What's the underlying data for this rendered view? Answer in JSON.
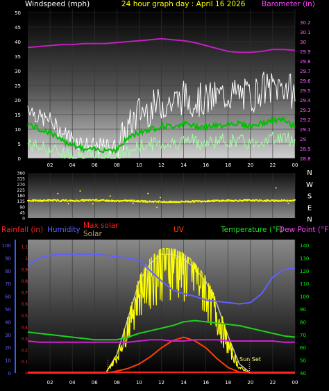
{
  "header": {
    "windspeed_label": "Windspeed (mph)",
    "graph_title": "24 hour graph day : April 16 2026",
    "barometer_label": "Barometer (in)"
  },
  "x_ticks": [
    "02",
    "04",
    "06",
    "08",
    "10",
    "12",
    "14",
    "16",
    "18",
    "20",
    "22",
    "00"
  ],
  "colors": {
    "gust": "#ffffff",
    "avg_wind": "#00c000",
    "wind_lower": "#a0ffa0",
    "barometer": "#c020c0",
    "direction": "#ffff00",
    "humidity": "#6060ff",
    "temperature": "#20d020",
    "dewpoint": "#d020d0",
    "solar": "#ffff00",
    "max_solar": "#c0c0c0",
    "uv": "#ff4000",
    "rain_axis": "#3060ff",
    "temp_axis": "#00ff00"
  },
  "chart_data": [
    {
      "type": "line",
      "name": "wind-barometer",
      "left_axis": {
        "label": "Windspeed (mph)",
        "ticks": [
          "0",
          "5",
          "10",
          "15",
          "20",
          "25",
          "30",
          "35",
          "40",
          "45",
          "50"
        ],
        "ylim": [
          0,
          50
        ]
      },
      "right_axis": {
        "label": "Barometer (in)",
        "ticks": [
          "28.8",
          "28.9",
          "29",
          "29.1",
          "29.2",
          "29.3",
          "29.4",
          "29.5",
          "29.6",
          "29.7",
          "29.8",
          "29.9",
          "30",
          "30.1",
          "30.2"
        ],
        "ylim": [
          28.8,
          30.3
        ]
      },
      "x": [
        0,
        1,
        2,
        3,
        4,
        5,
        6,
        7,
        8,
        9,
        10,
        11,
        12,
        13,
        14,
        15,
        16,
        17,
        18,
        19,
        20,
        21,
        22,
        23,
        24
      ],
      "series": [
        {
          "key": "gust",
          "values": [
            18,
            14,
            13,
            9,
            7,
            5,
            4,
            4,
            4,
            10,
            16,
            17,
            19,
            19,
            21,
            20,
            20,
            21,
            22,
            22,
            21,
            24,
            24,
            25,
            22
          ]
        },
        {
          "key": "average",
          "values": [
            12,
            10,
            9,
            6,
            5,
            3,
            3,
            3,
            3,
            7,
            9,
            10,
            11,
            11,
            12,
            11,
            11,
            11,
            12,
            12,
            11,
            12,
            13,
            13,
            11
          ]
        },
        {
          "key": "lower",
          "values": [
            5,
            4,
            3,
            2,
            1,
            1,
            0,
            0,
            0,
            2,
            4,
            5,
            5,
            5,
            6,
            6,
            5,
            6,
            6,
            6,
            5,
            6,
            7,
            7,
            6
          ]
        },
        {
          "key": "barometer",
          "values": [
            29.94,
            29.95,
            29.96,
            29.97,
            29.97,
            29.98,
            29.98,
            29.98,
            29.99,
            30.0,
            30.01,
            30.02,
            30.03,
            30.02,
            30.01,
            29.99,
            29.96,
            29.93,
            29.9,
            29.89,
            29.89,
            29.9,
            29.92,
            29.92,
            29.91
          ]
        }
      ]
    },
    {
      "type": "scatter",
      "name": "wind-direction",
      "left_ticks": [
        "0",
        "45",
        "90",
        "135",
        "180",
        "225",
        "270",
        "315",
        "360"
      ],
      "right_labels": [
        "N",
        "W",
        "S",
        "E",
        "N"
      ],
      "ylim": [
        0,
        360
      ],
      "x": [
        0,
        1,
        2,
        3,
        4,
        5,
        6,
        7,
        8,
        9,
        10,
        11,
        12,
        13,
        14,
        15,
        16,
        17,
        18,
        19,
        20,
        21,
        22,
        23,
        24
      ],
      "values": [
        140,
        138,
        141,
        139,
        137,
        140,
        142,
        139,
        136,
        138,
        135,
        132,
        130,
        128,
        131,
        134,
        136,
        138,
        139,
        140,
        141,
        139,
        138,
        140,
        141
      ]
    },
    {
      "type": "line",
      "name": "rain-humidity-solar-temp",
      "top_labels": {
        "rainfall": "Rainfall (in)",
        "humidity": "Humidity",
        "max_solar": "Max solar",
        "solar": "Solar",
        "uv": "UV",
        "temperature": "Temperature (°F)",
        "dewpoint": "Dew Point (°F)"
      },
      "axis_rain_ticks": [
        "0",
        "0.1",
        "0.2",
        "0.3",
        "0.4",
        "0.5",
        "0.6",
        "0.7",
        "0.8",
        "0.9",
        "1",
        "1.1"
      ],
      "axis_humidity_ticks": [
        "0",
        "10",
        "20",
        "30",
        "40",
        "50",
        "60",
        "70",
        "80",
        "90",
        "100"
      ],
      "axis_temp_ticks": [
        "40",
        "50",
        "60",
        "70",
        "80",
        "90",
        "100",
        "110",
        "120",
        "130",
        "140"
      ],
      "annotation": "Sun Set",
      "x": [
        0,
        1,
        2,
        3,
        4,
        5,
        6,
        7,
        8,
        9,
        10,
        11,
        12,
        13,
        14,
        15,
        16,
        17,
        18,
        19,
        20,
        21,
        22,
        23,
        24
      ],
      "series": [
        {
          "key": "humidity",
          "values": [
            84,
            90,
            92,
            93,
            93,
            93,
            93,
            92,
            91,
            90,
            88,
            80,
            72,
            65,
            62,
            60,
            57,
            56,
            55,
            54,
            55,
            62,
            75,
            81,
            82
          ]
        },
        {
          "key": "temperature",
          "values": [
            72,
            71,
            70,
            69,
            68,
            67,
            66,
            66,
            66,
            68,
            71,
            73,
            75,
            77,
            80,
            81,
            80,
            79,
            78,
            77,
            75,
            73,
            71,
            69,
            68
          ]
        },
        {
          "key": "dewpoint",
          "values": [
            65,
            64,
            64,
            64,
            64,
            64,
            64,
            64,
            64,
            64,
            65,
            66,
            66,
            65,
            65,
            66,
            66,
            66,
            65,
            65,
            65,
            65,
            65,
            64,
            64
          ]
        },
        {
          "key": "max_solar",
          "values": [
            0,
            0,
            0,
            0,
            0,
            0,
            0,
            0,
            20,
            60,
            100,
            120,
            130,
            130,
            125,
            115,
            100,
            75,
            40,
            10,
            0,
            0,
            0,
            0,
            0
          ]
        },
        {
          "key": "solar",
          "values": [
            0,
            0,
            0,
            0,
            0,
            0,
            0,
            0,
            15,
            45,
            80,
            95,
            105,
            110,
            100,
            95,
            80,
            55,
            25,
            5,
            0,
            0,
            0,
            0,
            0
          ]
        },
        {
          "key": "uv",
          "values": [
            0,
            0,
            0,
            0,
            0,
            0,
            0,
            0,
            0.02,
            0.05,
            0.1,
            0.18,
            0.28,
            0.36,
            0.4,
            0.36,
            0.28,
            0.16,
            0.06,
            0.01,
            0,
            0,
            0,
            0,
            0
          ]
        }
      ]
    }
  ]
}
